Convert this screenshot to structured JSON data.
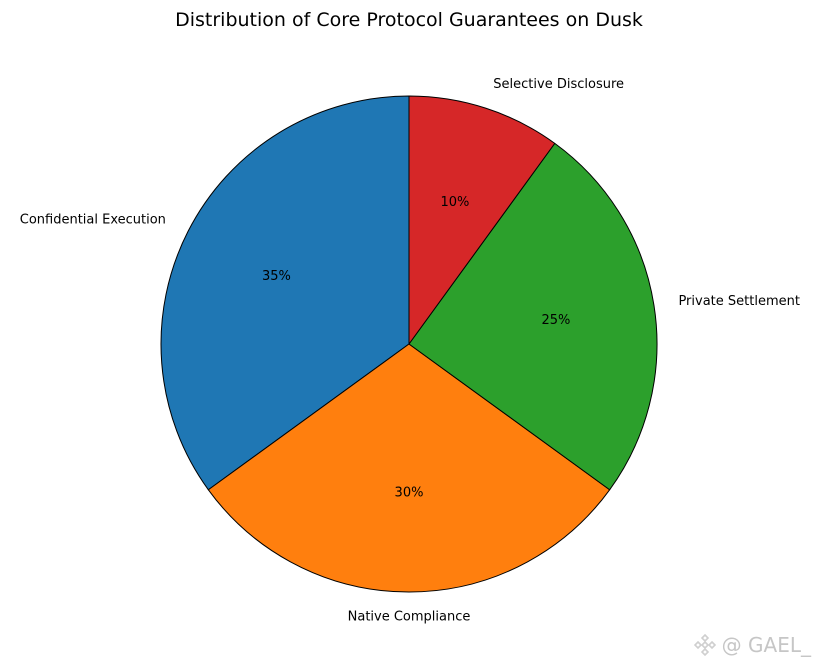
{
  "chart_data": {
    "type": "pie",
    "title": "Distribution of Core Protocol Guarantees on Dusk",
    "labels": [
      "Confidential Execution",
      "Native Compliance",
      "Private Settlement",
      "Selective Disclosure"
    ],
    "values": [
      35,
      30,
      25,
      10
    ],
    "percent_labels": [
      "35%",
      "30%",
      "25%",
      "10%"
    ],
    "colors": [
      "#1f77b4",
      "#ff7f0e",
      "#2ca02c",
      "#d62728"
    ],
    "start_angle_deg": 90,
    "direction": "counterclockwise",
    "edge_color": "#000000"
  },
  "watermark": {
    "text": "@ GAEL_",
    "icon": "diamond-logo-icon"
  }
}
